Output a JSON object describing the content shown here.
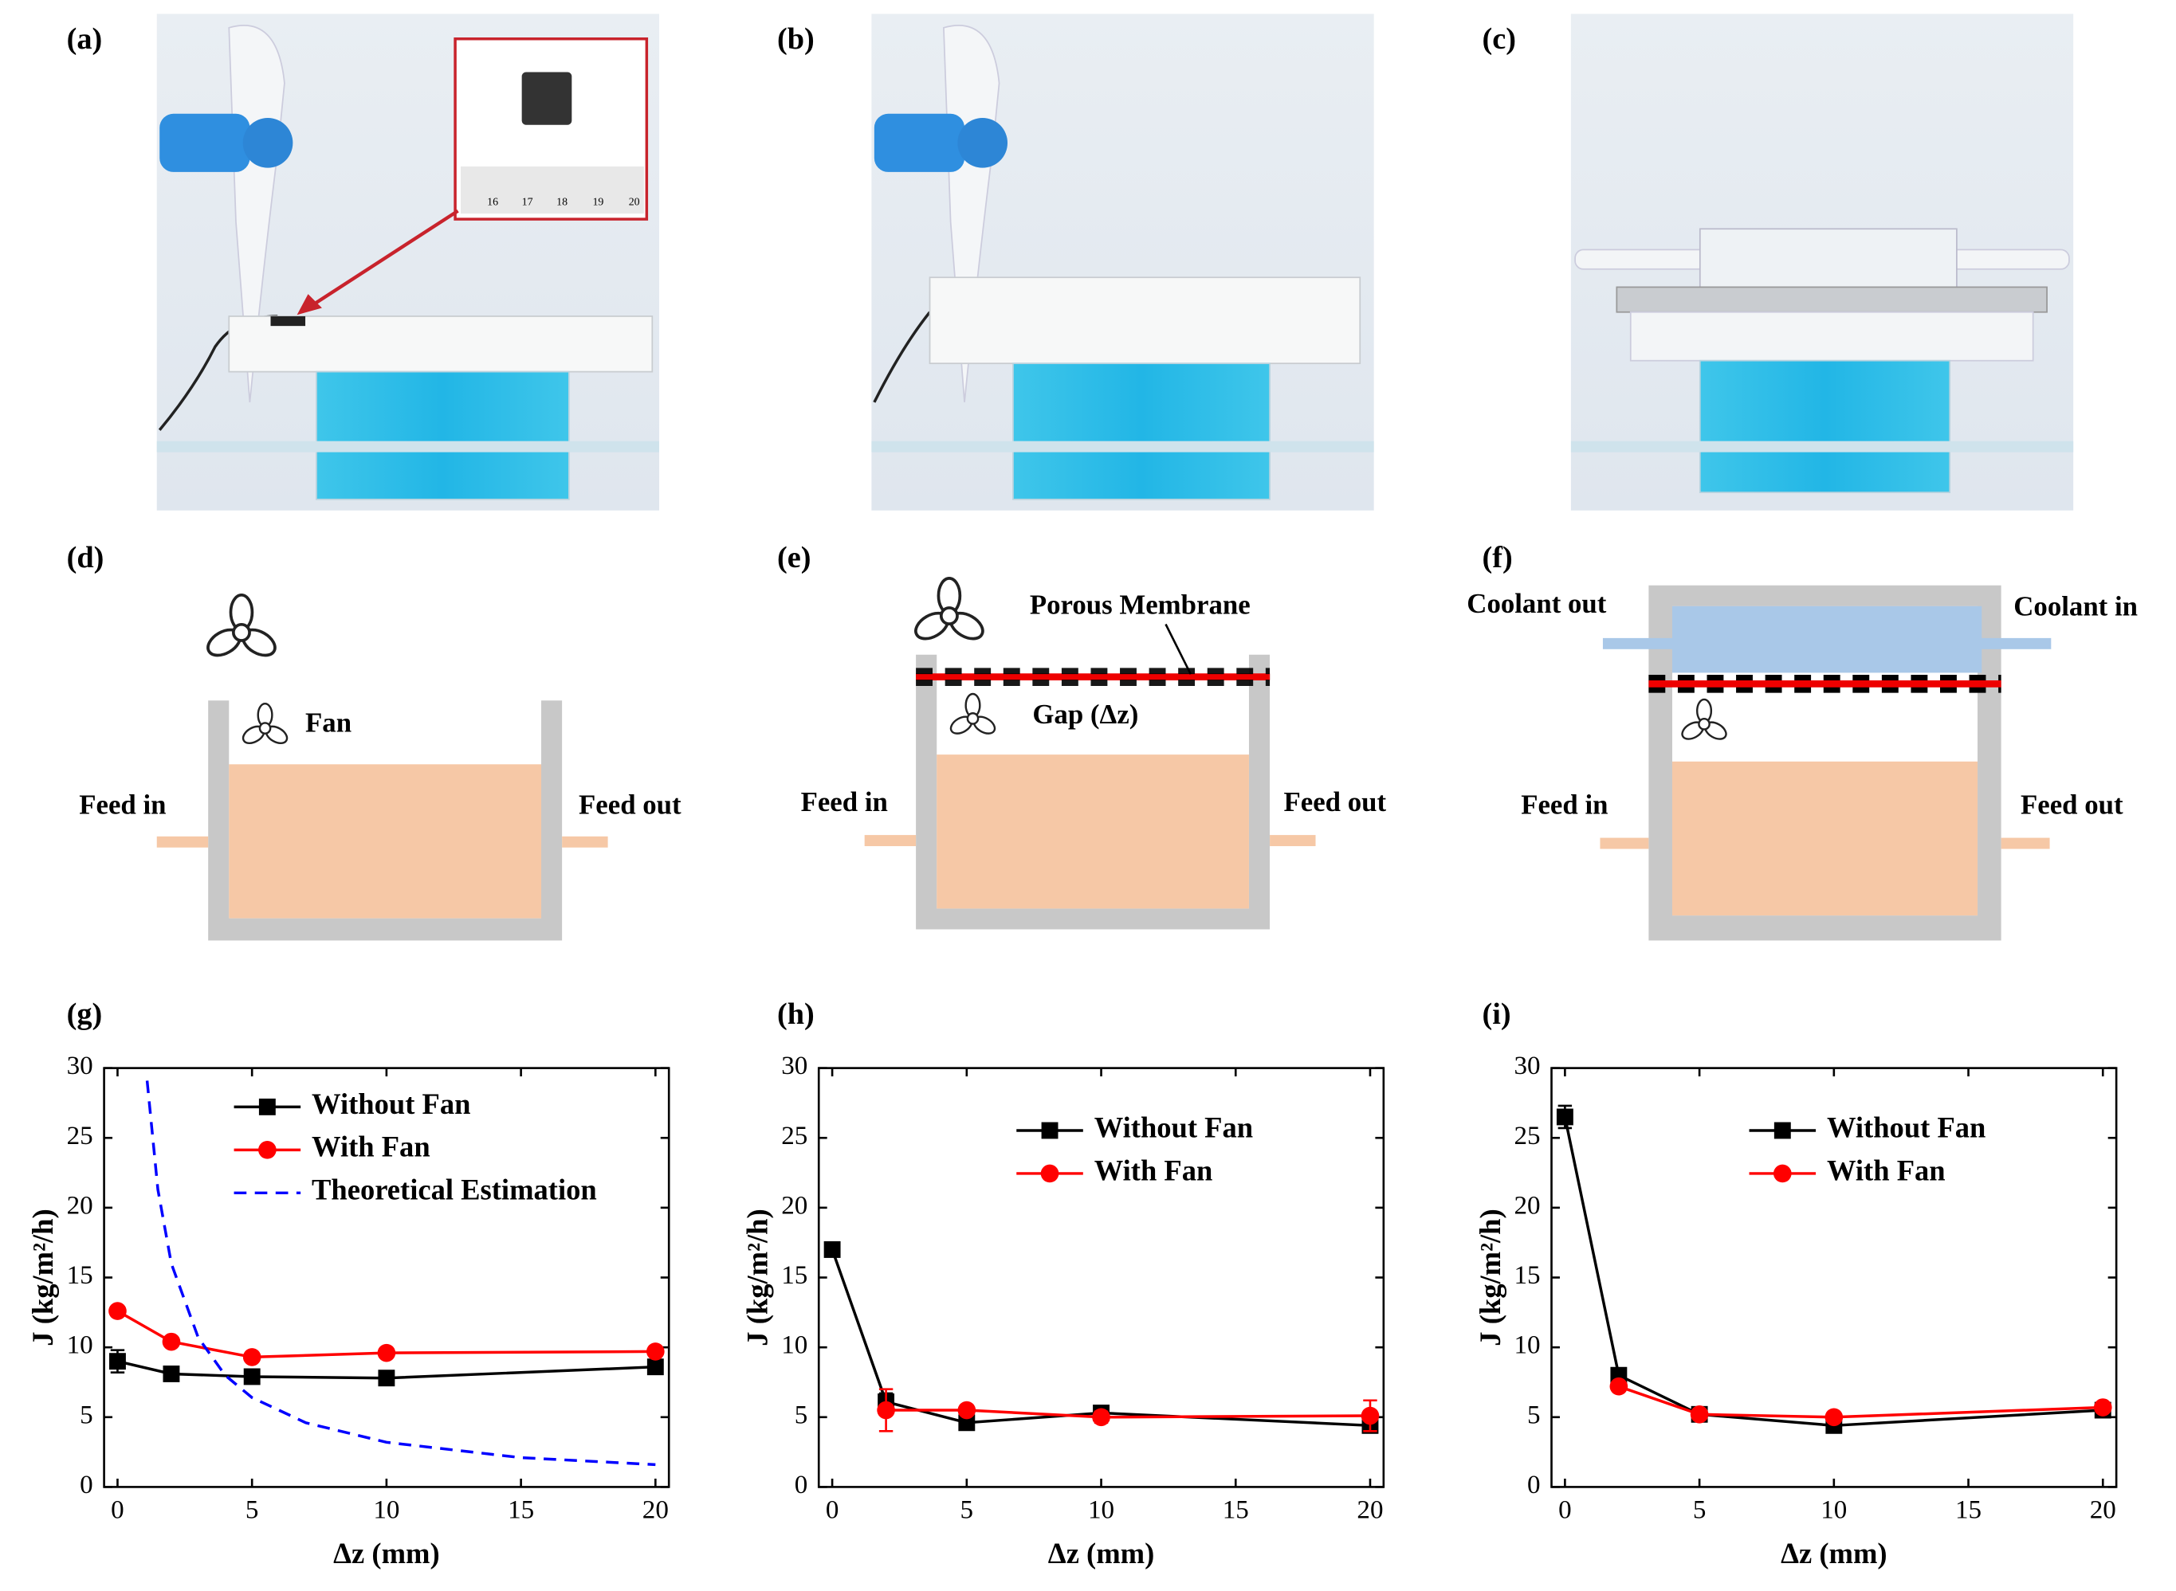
{
  "panel_labels": [
    "(a)",
    "(b)",
    "(c)",
    "(d)",
    "(e)",
    "(f)",
    "(g)",
    "(h)",
    "(i)"
  ],
  "photo_a": {
    "ruler_labels": [
      "16",
      "17",
      "18",
      "19",
      "20"
    ]
  },
  "diagram_d": {
    "fan": "Fan",
    "feed_in": "Feed in",
    "feed_out": "Feed out"
  },
  "diagram_e": {
    "membrane": "Porous Membrane",
    "gap": "Gap (Δz)",
    "feed_in": "Feed in",
    "feed_out": "Feed out"
  },
  "diagram_f": {
    "coolant_out": "Coolant out",
    "coolant_in": "Coolant in",
    "feed_in": "Feed in",
    "feed_out": "Feed out"
  },
  "chart_data": [
    {
      "type": "line",
      "x_label": "Δz (mm)",
      "y_label": "J (kg/m²/h)",
      "x": [
        0,
        2,
        5,
        10,
        20
      ],
      "xlim": [
        -0.5,
        20.5
      ],
      "xticks": [
        0,
        5,
        10,
        15,
        20
      ],
      "ylim": [
        0,
        30
      ],
      "yticks": [
        0,
        5,
        10,
        15,
        20,
        25,
        30
      ],
      "legend": "upper right",
      "series": [
        {
          "name": "Without Fan",
          "color": "#000000",
          "marker": "square",
          "values": [
            9.0,
            8.1,
            7.9,
            7.8,
            8.6
          ],
          "errors": [
            0.8,
            0.4,
            0.4,
            0.4,
            0.4
          ]
        },
        {
          "name": "With Fan",
          "color": "#ff0000",
          "marker": "circle",
          "values": [
            12.6,
            10.4,
            9.3,
            9.6,
            9.7
          ],
          "errors": [
            0.3,
            0.3,
            0.3,
            0.3,
            0.3
          ]
        },
        {
          "name": "Theoretical Estimation",
          "color": "#0000ff",
          "line_style": "dashed",
          "x": [
            1.1,
            1.5,
            2,
            3,
            4,
            5,
            7,
            10,
            15,
            20
          ],
          "values": [
            29.1,
            21.3,
            16.0,
            10.7,
            8.0,
            6.4,
            4.6,
            3.2,
            2.1,
            1.6
          ]
        }
      ]
    },
    {
      "type": "line",
      "x_label": "Δz (mm)",
      "y_label": "J (kg/m²/h)",
      "x": [
        0,
        2,
        5,
        10,
        20
      ],
      "xlim": [
        -0.5,
        20.5
      ],
      "xticks": [
        0,
        5,
        10,
        15,
        20
      ],
      "ylim": [
        0,
        30
      ],
      "yticks": [
        0,
        5,
        10,
        15,
        20,
        25,
        30
      ],
      "legend": "upper right",
      "series": [
        {
          "name": "Without Fan",
          "color": "#000000",
          "marker": "square",
          "values": [
            17.0,
            6.1,
            4.6,
            5.3,
            4.4
          ],
          "errors": [
            0.5,
            0.6,
            0.4,
            0.4,
            0.4
          ]
        },
        {
          "name": "With Fan",
          "color": "#ff0000",
          "marker": "circle",
          "values": [
            null,
            5.5,
            5.5,
            5.0,
            5.1
          ],
          "errors": [
            null,
            1.5,
            0.3,
            0.4,
            1.1
          ]
        }
      ]
    },
    {
      "type": "line",
      "x_label": "Δz (mm)",
      "y_label": "J (kg/m²/h)",
      "x": [
        0,
        2,
        5,
        10,
        20
      ],
      "xlim": [
        -0.5,
        20.5
      ],
      "xticks": [
        0,
        5,
        10,
        15,
        20
      ],
      "ylim": [
        0,
        30
      ],
      "yticks": [
        0,
        5,
        10,
        15,
        20,
        25,
        30
      ],
      "legend": "upper right",
      "series": [
        {
          "name": "Without Fan",
          "color": "#000000",
          "marker": "square",
          "values": [
            26.5,
            8.0,
            5.2,
            4.4,
            5.5
          ],
          "errors": [
            0.8,
            0.5,
            0.5,
            0.4,
            0.3
          ]
        },
        {
          "name": "With Fan",
          "color": "#ff0000",
          "marker": "circle",
          "values": [
            null,
            7.2,
            5.2,
            5.0,
            5.7
          ],
          "errors": [
            null,
            0.3,
            0.3,
            0.3,
            0.3
          ]
        }
      ]
    }
  ]
}
